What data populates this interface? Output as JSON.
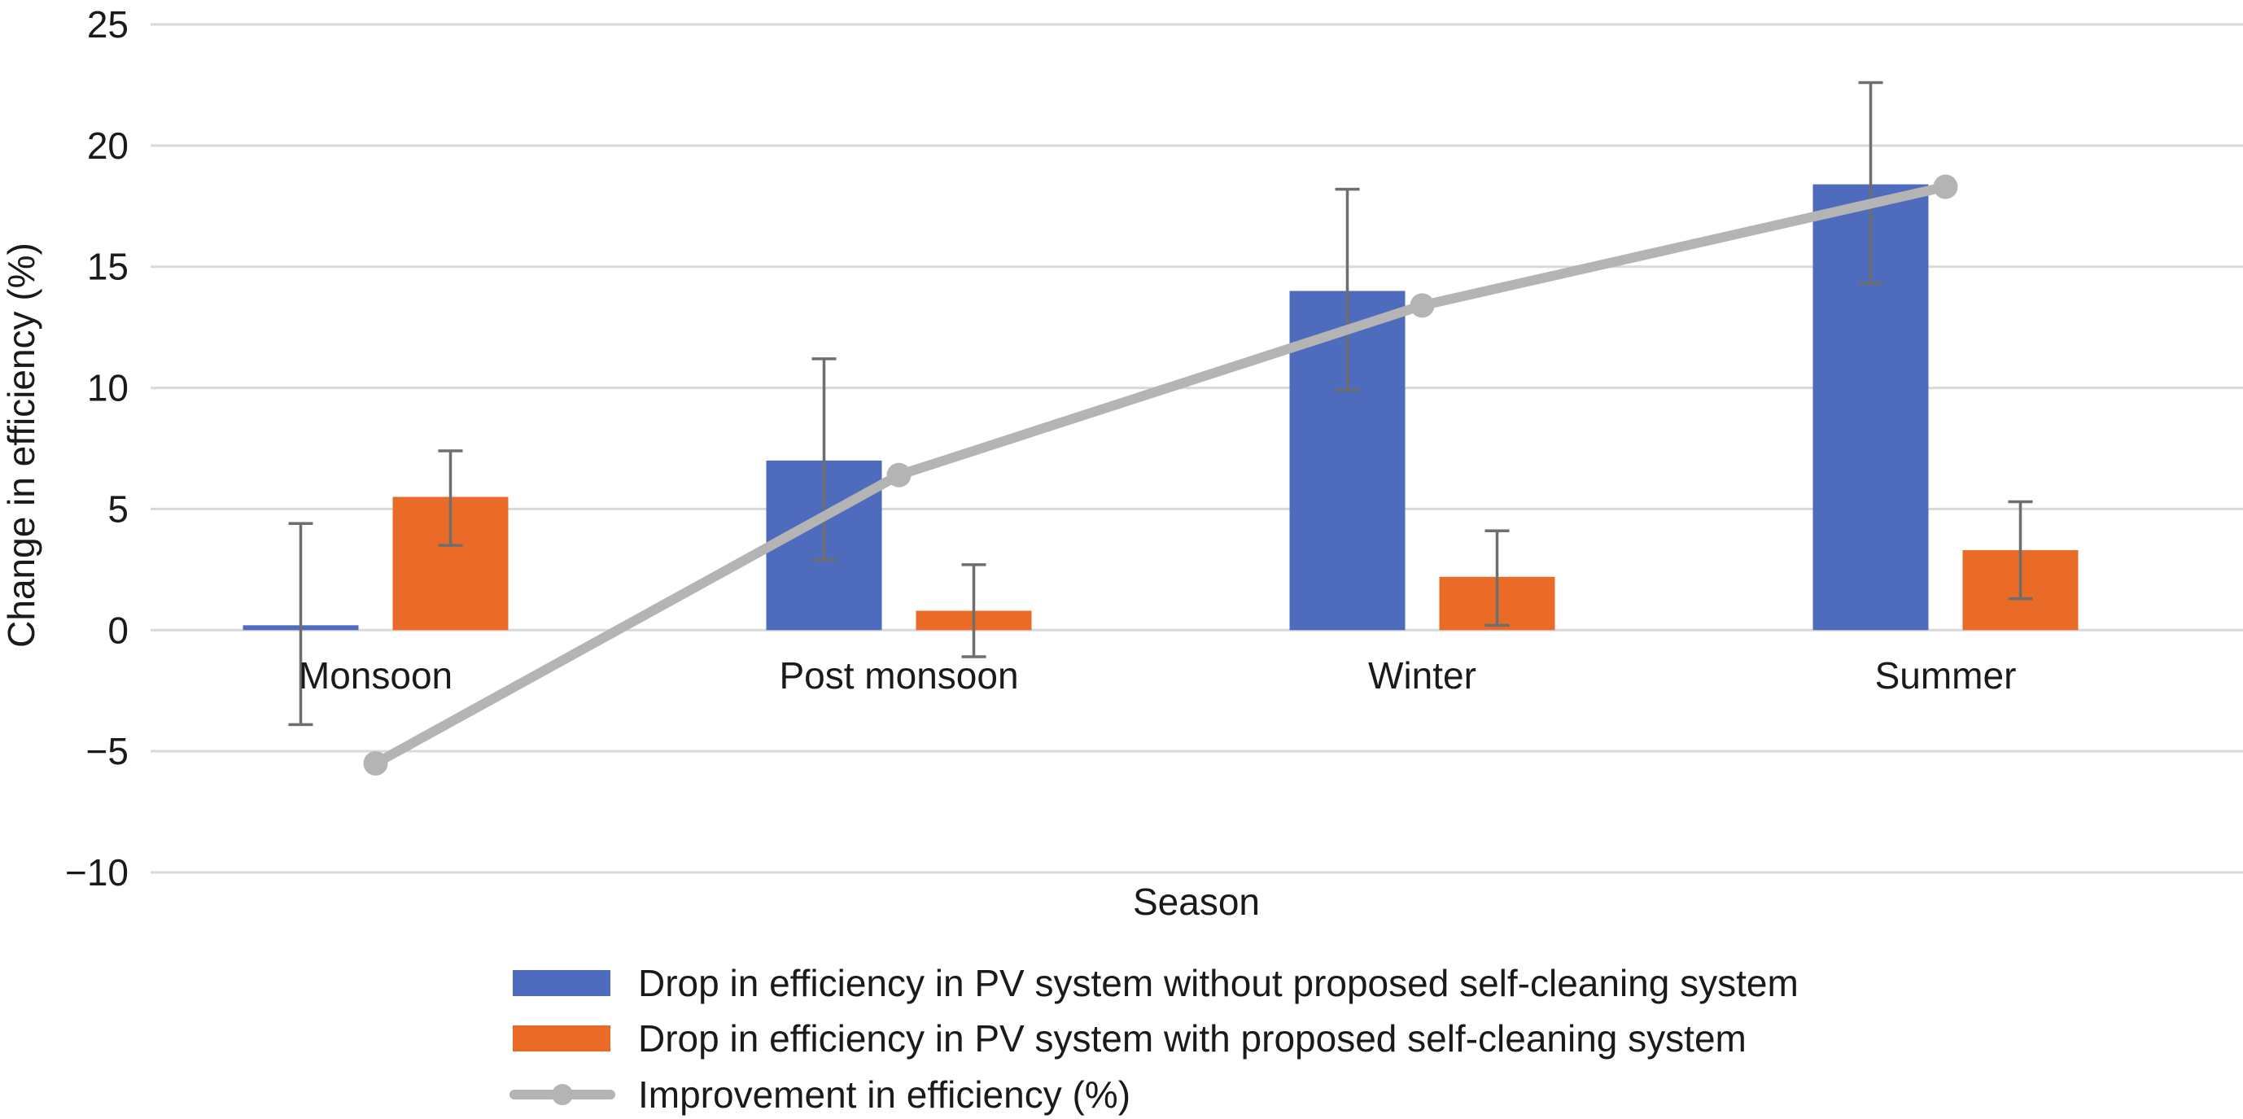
{
  "chart_data": {
    "type": "bar",
    "xlabel": "Season",
    "ylabel": "Change in efficiency (%)",
    "ylim": [
      -10,
      25
    ],
    "yticks": [
      25,
      20,
      15,
      10,
      5,
      0,
      -5,
      -10
    ],
    "ytick_labels": [
      "25",
      "20",
      "15",
      "10",
      "5",
      "0",
      "−5",
      "−10"
    ],
    "grid": true,
    "legend_position": "bottom",
    "categories": [
      "Monsoon",
      "Post monsoon",
      "Winter",
      "Summer"
    ],
    "series": [
      {
        "name": "Drop in efficiency in PV system without proposed self-cleaning system",
        "kind": "bar",
        "color": "#4f6bbd",
        "values": [
          0.2,
          7.0,
          14.0,
          18.4
        ],
        "error_low": [
          -3.9,
          2.9,
          9.9,
          14.3
        ],
        "error_high": [
          4.4,
          11.2,
          18.2,
          22.6
        ]
      },
      {
        "name": "Drop in efficiency in PV system with proposed self-cleaning system",
        "kind": "bar",
        "color": "#e96b27",
        "values": [
          5.5,
          0.8,
          2.2,
          3.3
        ],
        "error_low": [
          3.5,
          -1.1,
          0.2,
          1.3
        ],
        "error_high": [
          7.4,
          2.7,
          4.1,
          5.3
        ]
      },
      {
        "name": "Improvement in efficiency (%)",
        "kind": "line",
        "color": "#b4b4b4",
        "values": [
          -5.5,
          6.4,
          13.4,
          18.3
        ]
      }
    ]
  }
}
